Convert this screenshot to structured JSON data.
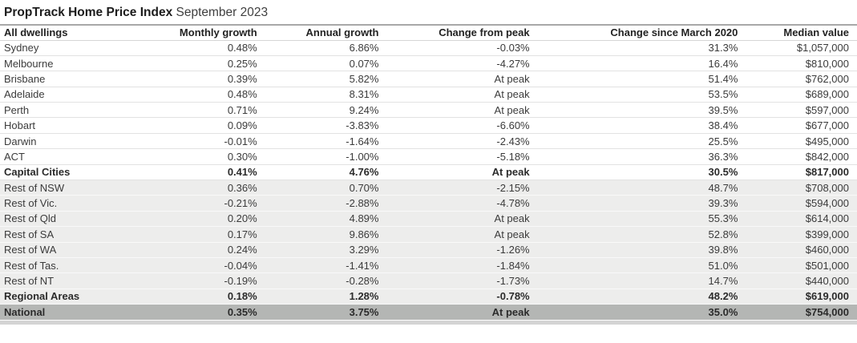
{
  "title": {
    "main": "PropTrack Home Price Index",
    "period": " September 2023"
  },
  "colors": {
    "light_row_bg": "#ededec",
    "national_row_bg": "#b4b6b4",
    "body_text": "#3b3b3b",
    "header_text": "#222222",
    "separator": "#e2e2e2"
  },
  "chart_data": {
    "type": "table",
    "title": "PropTrack Home Price Index September 2023",
    "columns": [
      "All dwellings",
      "Monthly growth",
      "Annual growth",
      "Change from peak",
      "Change since March 2020",
      "Median value"
    ],
    "rows": [
      {
        "cells": [
          "Sydney",
          "0.48%",
          "6.86%",
          "-0.03%",
          "31.3%",
          "$1,057,000"
        ],
        "shading": "white",
        "emphasis": "normal"
      },
      {
        "cells": [
          "Melbourne",
          "0.25%",
          "0.07%",
          "-4.27%",
          "16.4%",
          "$810,000"
        ],
        "shading": "white",
        "emphasis": "normal"
      },
      {
        "cells": [
          "Brisbane",
          "0.39%",
          "5.82%",
          "At peak",
          "51.4%",
          "$762,000"
        ],
        "shading": "white",
        "emphasis": "normal"
      },
      {
        "cells": [
          "Adelaide",
          "0.48%",
          "8.31%",
          "At peak",
          "53.5%",
          "$689,000"
        ],
        "shading": "white",
        "emphasis": "normal"
      },
      {
        "cells": [
          "Perth",
          "0.71%",
          "9.24%",
          "At peak",
          "39.5%",
          "$597,000"
        ],
        "shading": "white",
        "emphasis": "normal"
      },
      {
        "cells": [
          "Hobart",
          "0.09%",
          "-3.83%",
          "-6.60%",
          "38.4%",
          "$677,000"
        ],
        "shading": "white",
        "emphasis": "normal"
      },
      {
        "cells": [
          "Darwin",
          "-0.01%",
          "-1.64%",
          "-2.43%",
          "25.5%",
          "$495,000"
        ],
        "shading": "white",
        "emphasis": "normal"
      },
      {
        "cells": [
          "ACT",
          "0.30%",
          "-1.00%",
          "-5.18%",
          "36.3%",
          "$842,000"
        ],
        "shading": "white",
        "emphasis": "normal"
      },
      {
        "cells": [
          "Capital Cities",
          "0.41%",
          "4.76%",
          "At peak",
          "30.5%",
          "$817,000"
        ],
        "shading": "white",
        "emphasis": "bold"
      },
      {
        "cells": [
          "Rest of NSW",
          "0.36%",
          "0.70%",
          "-2.15%",
          "48.7%",
          "$708,000"
        ],
        "shading": "light",
        "emphasis": "normal"
      },
      {
        "cells": [
          "Rest of Vic.",
          "-0.21%",
          "-2.88%",
          "-4.78%",
          "39.3%",
          "$594,000"
        ],
        "shading": "light",
        "emphasis": "normal"
      },
      {
        "cells": [
          "Rest of Qld",
          "0.20%",
          "4.89%",
          "At peak",
          "55.3%",
          "$614,000"
        ],
        "shading": "light",
        "emphasis": "normal"
      },
      {
        "cells": [
          "Rest of SA",
          "0.17%",
          "9.86%",
          "At peak",
          "52.8%",
          "$399,000"
        ],
        "shading": "light",
        "emphasis": "normal"
      },
      {
        "cells": [
          "Rest of WA",
          "0.24%",
          "3.29%",
          "-1.26%",
          "39.8%",
          "$460,000"
        ],
        "shading": "light",
        "emphasis": "normal"
      },
      {
        "cells": [
          "Rest of Tas.",
          "-0.04%",
          "-1.41%",
          "-1.84%",
          "51.0%",
          "$501,000"
        ],
        "shading": "light",
        "emphasis": "normal"
      },
      {
        "cells": [
          "Rest of NT",
          "-0.19%",
          "-0.28%",
          "-1.73%",
          "14.7%",
          "$440,000"
        ],
        "shading": "light",
        "emphasis": "normal"
      },
      {
        "cells": [
          "Regional Areas",
          "0.18%",
          "1.28%",
          "-0.78%",
          "48.2%",
          "$619,000"
        ],
        "shading": "light",
        "emphasis": "bold"
      },
      {
        "cells": [
          "National",
          "0.35%",
          "3.75%",
          "At peak",
          "35.0%",
          "$754,000"
        ],
        "shading": "dark",
        "emphasis": "bold"
      }
    ]
  }
}
